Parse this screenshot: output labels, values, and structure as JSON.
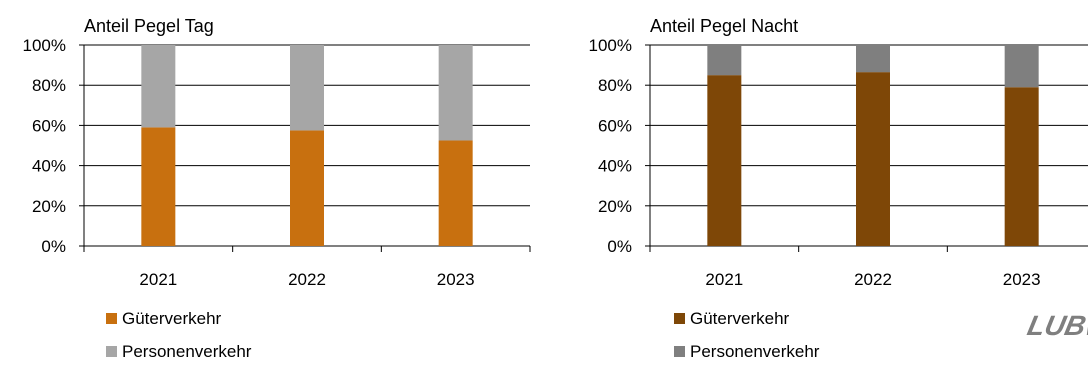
{
  "logo_text": "LUBW",
  "chart_data": [
    {
      "type": "bar",
      "stacked": true,
      "title": "Anteil Pegel Tag",
      "categories": [
        "2021",
        "2022",
        "2023"
      ],
      "series": [
        {
          "name": "Güterverkehr",
          "values": [
            59,
            57.5,
            52.5
          ],
          "color": "#c8700f"
        },
        {
          "name": "Personenverkehr",
          "values": [
            41,
            42.5,
            47.5
          ],
          "color": "#a6a6a6"
        }
      ],
      "yticks": [
        "0%",
        "20%",
        "40%",
        "60%",
        "80%",
        "100%"
      ],
      "ylim": [
        0,
        100
      ],
      "grid": true,
      "legend_position": "bottom-left"
    },
    {
      "type": "bar",
      "stacked": true,
      "title": "Anteil Pegel Nacht",
      "categories": [
        "2021",
        "2022",
        "2023"
      ],
      "series": [
        {
          "name": "Güterverkehr",
          "values": [
            85,
            86.5,
            79
          ],
          "color": "#7e4707"
        },
        {
          "name": "Personenverkehr",
          "values": [
            15,
            13.5,
            21
          ],
          "color": "#7f7f7f"
        }
      ],
      "yticks": [
        "0%",
        "20%",
        "40%",
        "60%",
        "80%",
        "100%"
      ],
      "ylim": [
        0,
        100
      ],
      "grid": true,
      "legend_position": "bottom-left"
    }
  ]
}
